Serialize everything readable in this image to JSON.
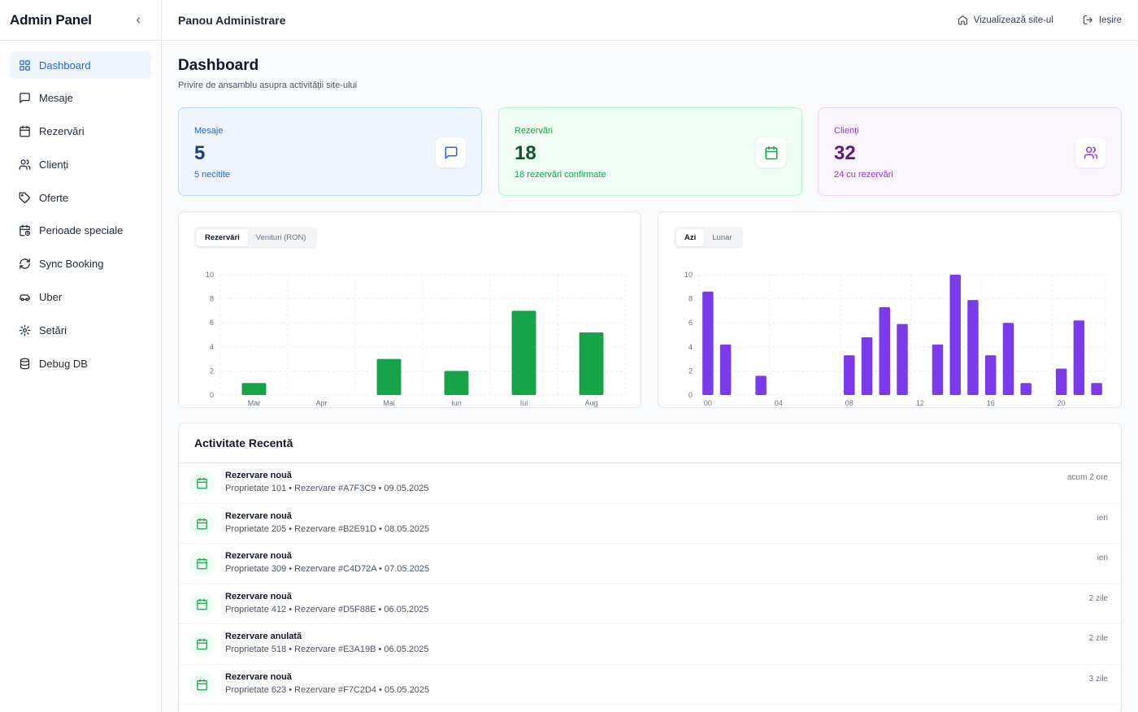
{
  "sidebar": {
    "title": "Admin Panel",
    "items": [
      {
        "label": "Dashboard",
        "icon": "grid-icon",
        "active": true
      },
      {
        "label": "Mesaje",
        "icon": "message-icon"
      },
      {
        "label": "Rezervări",
        "icon": "calendar-icon"
      },
      {
        "label": "Clienți",
        "icon": "users-icon"
      },
      {
        "label": "Oferte",
        "icon": "tag-icon"
      },
      {
        "label": "Perioade speciale",
        "icon": "calendar-clock-icon"
      },
      {
        "label": "Sync Booking",
        "icon": "refresh-icon"
      },
      {
        "label": "Uber",
        "icon": "car-icon"
      },
      {
        "label": "Setări",
        "icon": "gear-icon"
      },
      {
        "label": "Debug DB",
        "icon": "database-icon"
      }
    ]
  },
  "topbar": {
    "title": "Panou Administrare",
    "view_site": "Vizualizează site-ul",
    "logout": "Ieșire"
  },
  "page": {
    "title": "Dashboard",
    "subtitle": "Privire de ansamblu asupra activității site-ului"
  },
  "stats": [
    {
      "label": "Mesaje",
      "value": "5",
      "sub": "5 necitite",
      "color": "#2563eb",
      "value_color": "#1e3a8a"
    },
    {
      "label": "Rezervări",
      "value": "18",
      "sub": "18 rezervări confirmate",
      "color": "#16a34a",
      "value_color": "#14532d"
    },
    {
      "label": "Clienți",
      "value": "32",
      "sub": "24 cu rezervări",
      "color": "#9333ea",
      "value_color": "#581c87"
    }
  ],
  "chart_tabs": {
    "left": [
      "Rezervări",
      "Venituri (RON)"
    ],
    "right": [
      "Azi",
      "Lunar"
    ]
  },
  "chart_data": [
    {
      "type": "bar",
      "categories": [
        "Mar",
        "Apr",
        "Mai",
        "Iun",
        "Iul",
        "Aug"
      ],
      "values": [
        1,
        0,
        3,
        2,
        7,
        5.2
      ],
      "ylim": [
        0,
        10
      ],
      "yticks": [
        0,
        2,
        4,
        6,
        8,
        10
      ],
      "color": "#16a34a",
      "grid": true
    },
    {
      "type": "bar",
      "x": [
        "00",
        "01",
        "02",
        "03",
        "04",
        "05",
        "06",
        "07",
        "08",
        "09",
        "10",
        "11",
        "12",
        "13",
        "14",
        "15",
        "16",
        "17",
        "18",
        "19",
        "20",
        "21",
        "22"
      ],
      "values": [
        8.6,
        4.2,
        0,
        1.6,
        0,
        0,
        0,
        0,
        3.3,
        4.8,
        7.3,
        5.9,
        0,
        4.2,
        10,
        7.9,
        3.3,
        6.0,
        1.0,
        0,
        2.2,
        6.2,
        1.0
      ],
      "xticks": [
        "00",
        "04",
        "08",
        "12",
        "16",
        "20"
      ],
      "ylim": [
        0,
        10
      ],
      "yticks": [
        0,
        2,
        4,
        6,
        8,
        10
      ],
      "color": "#7c3aed",
      "grid": true
    }
  ],
  "activity": {
    "title": "Activitate Recentă",
    "items": [
      {
        "title": "Rezervare nouă",
        "desc": "Proprietate 101 • Rezervare #A7F3C9 • 09.05.2025",
        "time": "acum 2 ore"
      },
      {
        "title": "Rezervare nouă",
        "desc": "Proprietate 205 • Rezervare #B2E91D • 08.05.2025",
        "time": "ieri"
      },
      {
        "title": "Rezervare nouă",
        "desc": "Proprietate 309 • Rezervare #C4D72A • 07.05.2025",
        "time": "ieri"
      },
      {
        "title": "Rezervare nouă",
        "desc": "Proprietate 412 • Rezervare #D5F88E • 06.05.2025",
        "time": "2 zile"
      },
      {
        "title": "Rezervare anulată",
        "desc": "Proprietate 518 • Rezervare #E3A19B • 06.05.2025",
        "time": "2 zile"
      },
      {
        "title": "Rezervare nouă",
        "desc": "Proprietate 623 • Rezervare #F7C2D4 • 05.05.2025",
        "time": "3 zile"
      }
    ]
  }
}
